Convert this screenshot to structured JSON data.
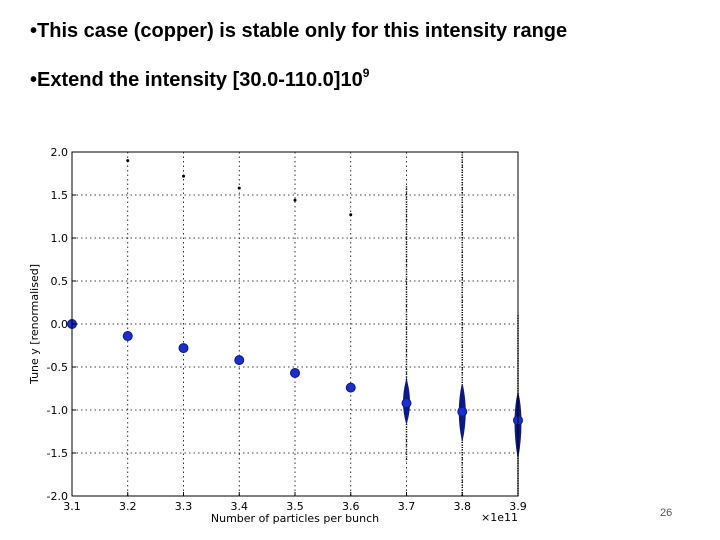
{
  "slide": {
    "bullet1": "This case (copper) is stable only for this intensity range",
    "bullet2_main": "Extend the intensity [30.0-110.0]10",
    "bullet2_sup": "9",
    "page_number": "26"
  },
  "chart_data": {
    "type": "scatter",
    "title": "",
    "xlabel": "Number of particles per bunch",
    "ylabel": "Tune y [renormalised]",
    "x_offset_label": "×1e11",
    "xlim": [
      3.1,
      3.9
    ],
    "ylim": [
      -2.0,
      2.0
    ],
    "y_inverted": true,
    "grid": "dotted",
    "x_ticks": [
      "3.1",
      "3.2",
      "3.3",
      "3.4",
      "3.5",
      "3.6",
      "3.7",
      "3.8",
      "3.9"
    ],
    "y_ticks": [
      "2.0",
      "1.5",
      "1.0",
      "0.5",
      "0.0",
      "-0.5",
      "-1.0",
      "-1.5",
      "-2.0"
    ],
    "colors": {
      "points": "#1a2fd0",
      "points_edge": "#0b1a80",
      "spread": "#000000"
    },
    "main_points": [
      {
        "x": 3.1,
        "y": 0.0
      },
      {
        "x": 3.2,
        "y": -0.14
      },
      {
        "x": 3.3,
        "y": -0.28
      },
      {
        "x": 3.4,
        "y": -0.42
      },
      {
        "x": 3.5,
        "y": -0.57
      },
      {
        "x": 3.6,
        "y": -0.74
      },
      {
        "x": 3.7,
        "y": -0.92
      },
      {
        "x": 3.8,
        "y": -1.02
      },
      {
        "x": 3.9,
        "y": -1.12
      }
    ],
    "outlier_points": [
      {
        "x": 3.2,
        "y": 1.9
      },
      {
        "x": 3.3,
        "y": 1.72
      },
      {
        "x": 3.4,
        "y": 1.58
      },
      {
        "x": 3.5,
        "y": 1.44
      },
      {
        "x": 3.6,
        "y": 1.27
      }
    ],
    "unstable_bands": [
      {
        "x": 3.7,
        "y_center": -0.92,
        "y_core": [
          -1.15,
          -0.65
        ],
        "y_tail": [
          -1.6,
          1.6
        ]
      },
      {
        "x": 3.8,
        "y_center": -1.02,
        "y_core": [
          -1.35,
          -0.7
        ],
        "y_tail": [
          -2.0,
          2.0
        ]
      },
      {
        "x": 3.9,
        "y_center": -1.12,
        "y_core": [
          -1.55,
          -0.8
        ],
        "y_tail": [
          -2.0,
          0.1
        ]
      }
    ]
  }
}
